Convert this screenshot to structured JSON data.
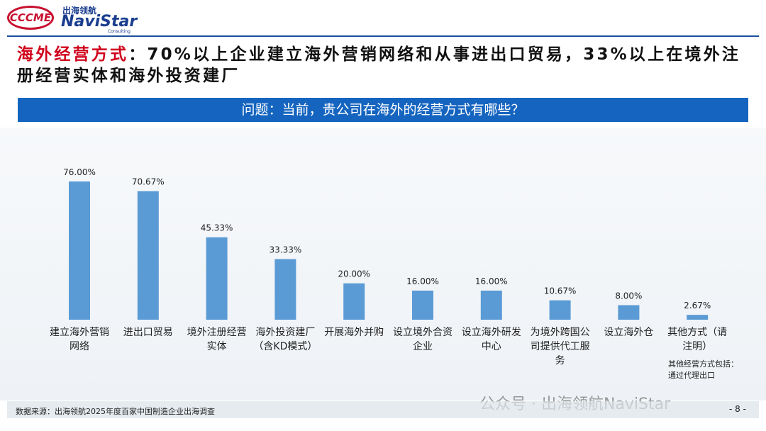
{
  "header": {
    "logo_text": "CCCME",
    "brand_cn": "出海领航",
    "brand_en": "NaviStar",
    "brand_sub": "Consulting"
  },
  "headline": {
    "highlight": "海外经营方式",
    "text": "：70%以上企业建立海外营销网络和从事进出口贸易，33%以上在境外注册经营实体和海外投资建厂"
  },
  "chart_data": {
    "type": "bar",
    "title": "问题：当前，贵公司在海外的经营方式有哪些？",
    "categories": [
      "建立海外营销网络",
      "进出口贸易",
      "境外注册经营实体",
      "海外投资建厂（含KD模式）",
      "开展海外并购",
      "设立境外合资企业",
      "设立海外研发中心",
      "为境外跨国公司提供代工服务",
      "设立海外仓",
      "其他方式（请注明）"
    ],
    "values": [
      76,
      70.67,
      45.33,
      33.33,
      20,
      16,
      16,
      10.67,
      8,
      2.67
    ],
    "value_labels": [
      "76.00%",
      "70.67%",
      "45.33%",
      "33.33%",
      "20.00%",
      "16.00%",
      "16.00%",
      "10.67%",
      "8.00%",
      "2.67%"
    ],
    "color": "#5b9bd5",
    "annotation": [
      "其他经营方式包括：",
      "通过代理出口"
    ]
  },
  "footer": {
    "source": "数据来源：出海领航2025年度百家中国制造企业出海调查",
    "page": "- 8 -",
    "watermark": "公众号 · 出海领航NaviStar"
  }
}
